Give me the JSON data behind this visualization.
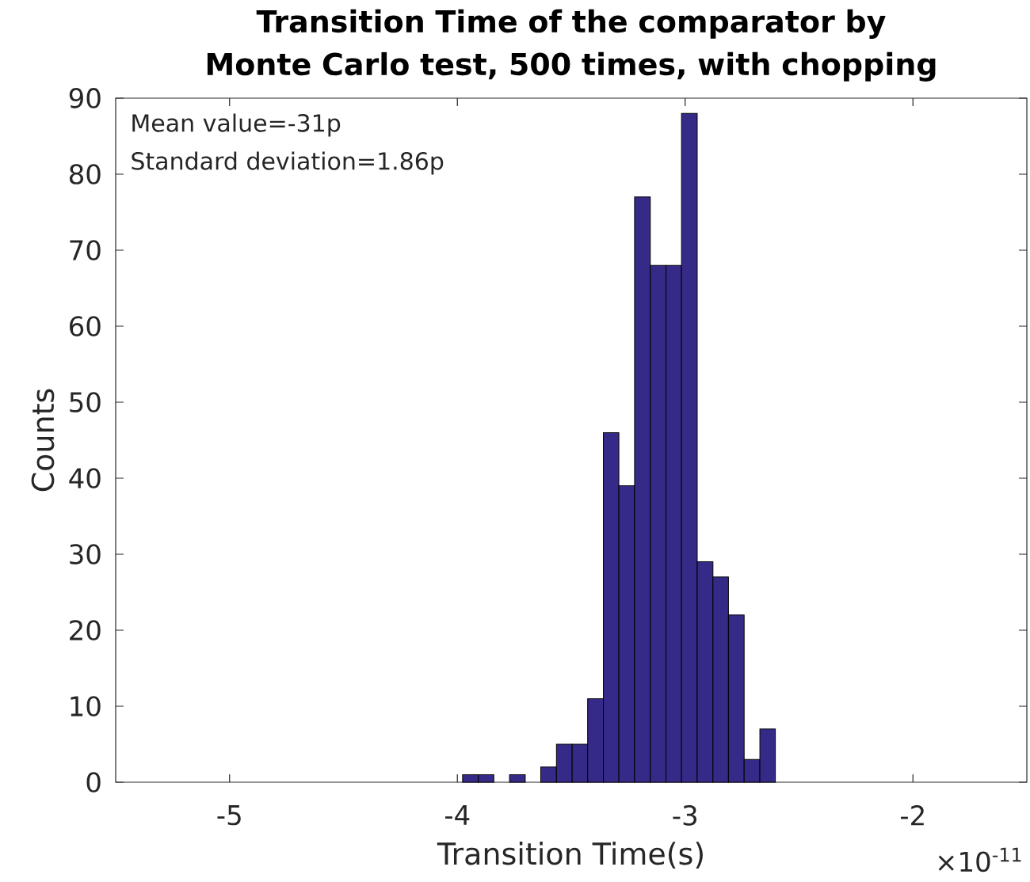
{
  "chart_data": {
    "type": "histogram",
    "title": "Transition Time of the comparator by Monte Carlo test, 500 times, with chopping",
    "xlabel": "Transition Time(s)",
    "ylabel": "Counts",
    "annotations": [
      "Mean value=-31p",
      "Standard deviation=1.86p",
      "×10$^{-11}$"
    ],
    "bins": [
      -3.977,
      -3.908,
      -3.84,
      -3.771,
      -3.702,
      -3.634,
      -3.565,
      -3.496,
      -3.428,
      -3.359,
      -3.291,
      -3.222,
      -3.153,
      -3.084,
      -3.016,
      -2.947,
      -2.878,
      -2.81,
      -2.741,
      -2.672,
      -2.604
    ],
    "values": [
      1,
      1,
      0,
      1,
      0,
      2,
      5,
      5,
      11,
      46,
      39,
      77,
      68,
      68,
      88,
      29,
      27,
      22,
      3,
      7
    ],
    "color": "#352a87",
    "xlim": [
      -5.5,
      -1.5
    ],
    "ylim": [
      0,
      90
    ],
    "xticks": [
      -5,
      -4,
      -3,
      -2
    ],
    "yticks": [
      0,
      10,
      20,
      30,
      40,
      50,
      60,
      70,
      80,
      90
    ],
    "grid": false
  }
}
